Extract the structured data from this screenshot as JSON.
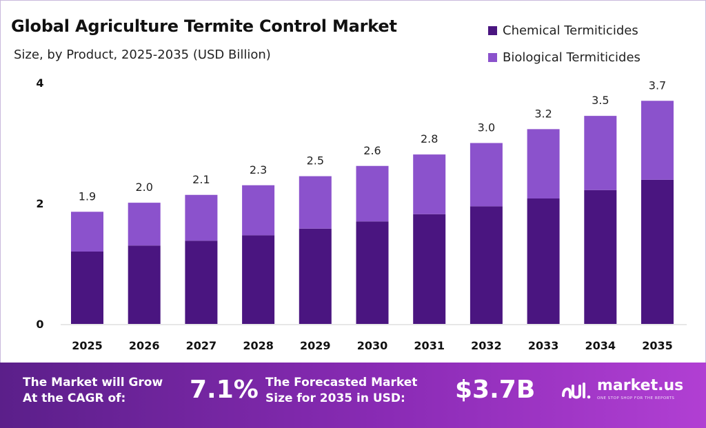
{
  "title": "Global Agriculture Termite Control Market",
  "subtitle": "Size, by Product, 2025-2035 (USD Billion)",
  "colors": {
    "chemical": "#4a1580",
    "biological": "#8b52cc",
    "footer_start": "#5b1f8a",
    "footer_end": "#b13fd3"
  },
  "chart_data": {
    "type": "bar",
    "stacked": true,
    "categories": [
      "2025",
      "2026",
      "2027",
      "2028",
      "2029",
      "2030",
      "2031",
      "2032",
      "2033",
      "2034",
      "2035"
    ],
    "series": [
      {
        "name": "Chemical Termiticides",
        "values": [
          1.2,
          1.3,
          1.38,
          1.47,
          1.58,
          1.7,
          1.82,
          1.95,
          2.08,
          2.22,
          2.39
        ]
      },
      {
        "name": "Biological Termiticides",
        "values": [
          0.66,
          0.71,
          0.76,
          0.83,
          0.87,
          0.92,
          0.99,
          1.05,
          1.15,
          1.23,
          1.31
        ]
      }
    ],
    "totals": [
      "1.9",
      "2.0",
      "2.1",
      "2.3",
      "2.5",
      "2.6",
      "2.8",
      "3.0",
      "3.2",
      "3.5",
      "3.7"
    ],
    "yticks": [
      "0",
      "2",
      "4"
    ],
    "ylim": [
      0,
      4
    ],
    "grid": false,
    "legend_position": "top-right"
  },
  "footer": {
    "cagr_text_line1": "The Market will Grow",
    "cagr_text_line2": "At the CAGR of:",
    "cagr_value": "7.1%",
    "forecast_text_line1": "The Forecasted Market",
    "forecast_text_line2": "Size for 2035 in USD:",
    "forecast_value": "$3.7B",
    "brand": "market.us",
    "tagline": "ONE STOP SHOP FOR THE REPORTS"
  }
}
